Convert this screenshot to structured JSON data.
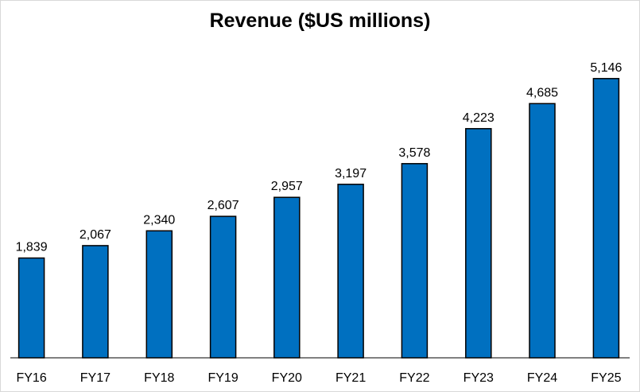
{
  "chart_data": {
    "type": "bar",
    "title": "Revenue ($US millions)",
    "xlabel": "",
    "ylabel": "",
    "categories": [
      "FY16",
      "FY17",
      "FY18",
      "FY19",
      "FY20",
      "FY21",
      "FY22",
      "FY23",
      "FY24",
      "FY25"
    ],
    "values": [
      1839,
      2067,
      2340,
      2607,
      2957,
      3197,
      3578,
      4223,
      4685,
      5146
    ],
    "value_labels": [
      "1,839",
      "2,067",
      "2,340",
      "2,607",
      "2,957",
      "3,197",
      "3,578",
      "4,223",
      "4,685",
      "5,146"
    ],
    "ylim": [
      0,
      5700
    ],
    "grid": false,
    "legend": "none",
    "bar_color": "#0070c0",
    "bar_outline_color": "#000000"
  }
}
